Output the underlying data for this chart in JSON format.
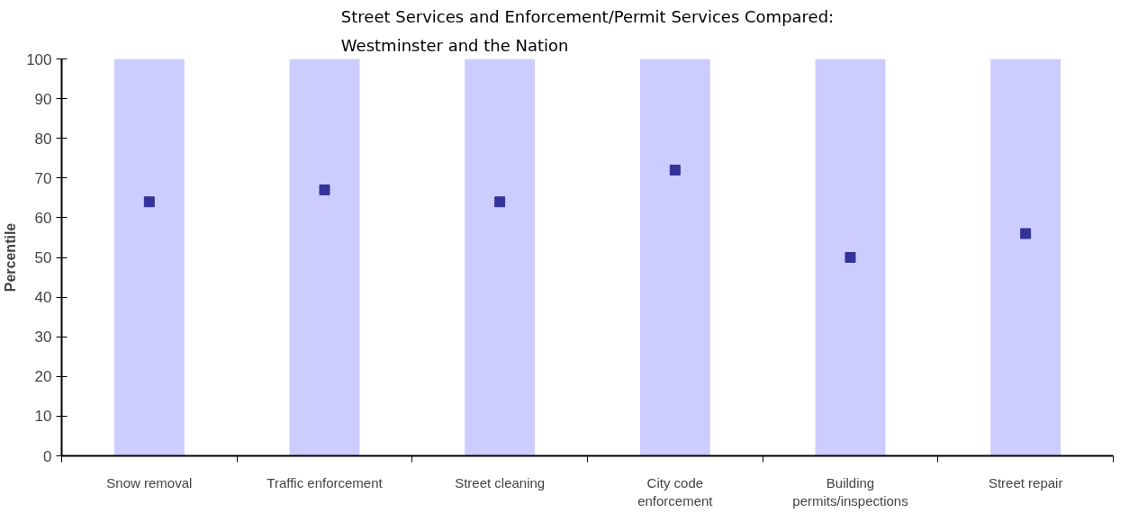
{
  "chart_data": {
    "type": "bar",
    "title": "Street Services and Enforcement/Permit Services Compared: Westminster and the Nation",
    "ylabel": "Percentile",
    "categories": [
      "Snow removal",
      "Traffic enforcement",
      "Street cleaning",
      "City code enforcement",
      "Building permits/inspections",
      "Street repair"
    ],
    "series": [
      {
        "color": "#ccccff",
        "values": [
          100,
          100,
          100,
          100,
          100,
          100
        ]
      },
      {
        "type": "scatter",
        "marker": "square",
        "color": "#333399",
        "values": [
          64,
          67,
          64,
          72,
          50,
          56
        ]
      }
    ],
    "ylim": [
      0,
      100
    ],
    "yticks": [
      0,
      10,
      20,
      30,
      40,
      50,
      60,
      70,
      80,
      90,
      100
    ],
    "grid": false
  }
}
